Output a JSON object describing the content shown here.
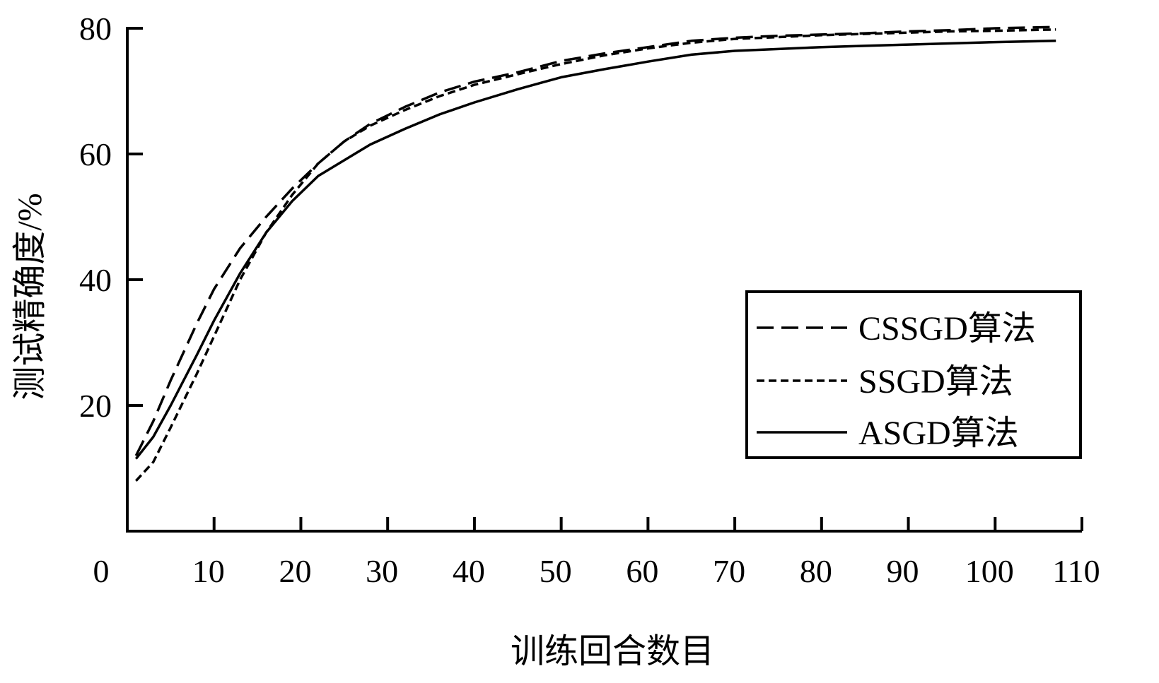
{
  "chart_data": {
    "type": "line",
    "title": "",
    "xlabel": "训练回合数目",
    "ylabel": "测试精确度/%",
    "xlim": [
      0,
      110
    ],
    "ylim": [
      0,
      80
    ],
    "x_ticks": [
      "0",
      "10",
      "20",
      "30",
      "40",
      "50",
      "60",
      "70",
      "80",
      "90",
      "100",
      "110"
    ],
    "y_ticks": [
      "20",
      "40",
      "60",
      "80"
    ],
    "grid": false,
    "legend_position": "right",
    "series": [
      {
        "name": "CSSGD算法",
        "style": "dashed",
        "x": [
          1,
          3,
          5,
          8,
          10,
          13,
          16,
          19,
          22,
          25,
          28,
          32,
          36,
          40,
          45,
          50,
          55,
          60,
          65,
          70,
          75,
          80,
          85,
          90,
          95,
          100,
          107
        ],
        "y": [
          12,
          17.5,
          24,
          33,
          38.5,
          45,
          50,
          54.5,
          58.5,
          62,
          64.8,
          67.5,
          69.8,
          71.5,
          73,
          74.8,
          76,
          77,
          78,
          78.5,
          78.8,
          79,
          79.2,
          79.5,
          79.7,
          80,
          80.2
        ]
      },
      {
        "name": "SSGD算法",
        "style": "dotted",
        "x": [
          1,
          3,
          5,
          8,
          10,
          13,
          16,
          19,
          22,
          25,
          28,
          32,
          36,
          40,
          45,
          50,
          55,
          60,
          65,
          70,
          75,
          80,
          85,
          90,
          95,
          100,
          107
        ],
        "y": [
          8,
          11,
          16.5,
          25,
          31,
          40,
          47.5,
          53.5,
          58.5,
          62,
          64.5,
          67,
          69.2,
          71,
          72.7,
          74.3,
          75.7,
          76.8,
          77.7,
          78.3,
          78.6,
          78.9,
          79.1,
          79.3,
          79.5,
          79.6,
          79.8
        ]
      },
      {
        "name": "ASGD算法",
        "style": "solid",
        "x": [
          1,
          3,
          5,
          8,
          10,
          13,
          16,
          19,
          22,
          25,
          28,
          32,
          36,
          40,
          45,
          50,
          55,
          60,
          65,
          70,
          75,
          80,
          85,
          90,
          95,
          100,
          107
        ],
        "y": [
          11.5,
          15,
          20,
          28,
          33.5,
          41,
          47.5,
          52.5,
          56.5,
          59,
          61.5,
          64,
          66.3,
          68.2,
          70.3,
          72.2,
          73.5,
          74.7,
          75.8,
          76.4,
          76.7,
          77,
          77.2,
          77.4,
          77.6,
          77.8,
          78
        ]
      }
    ]
  }
}
